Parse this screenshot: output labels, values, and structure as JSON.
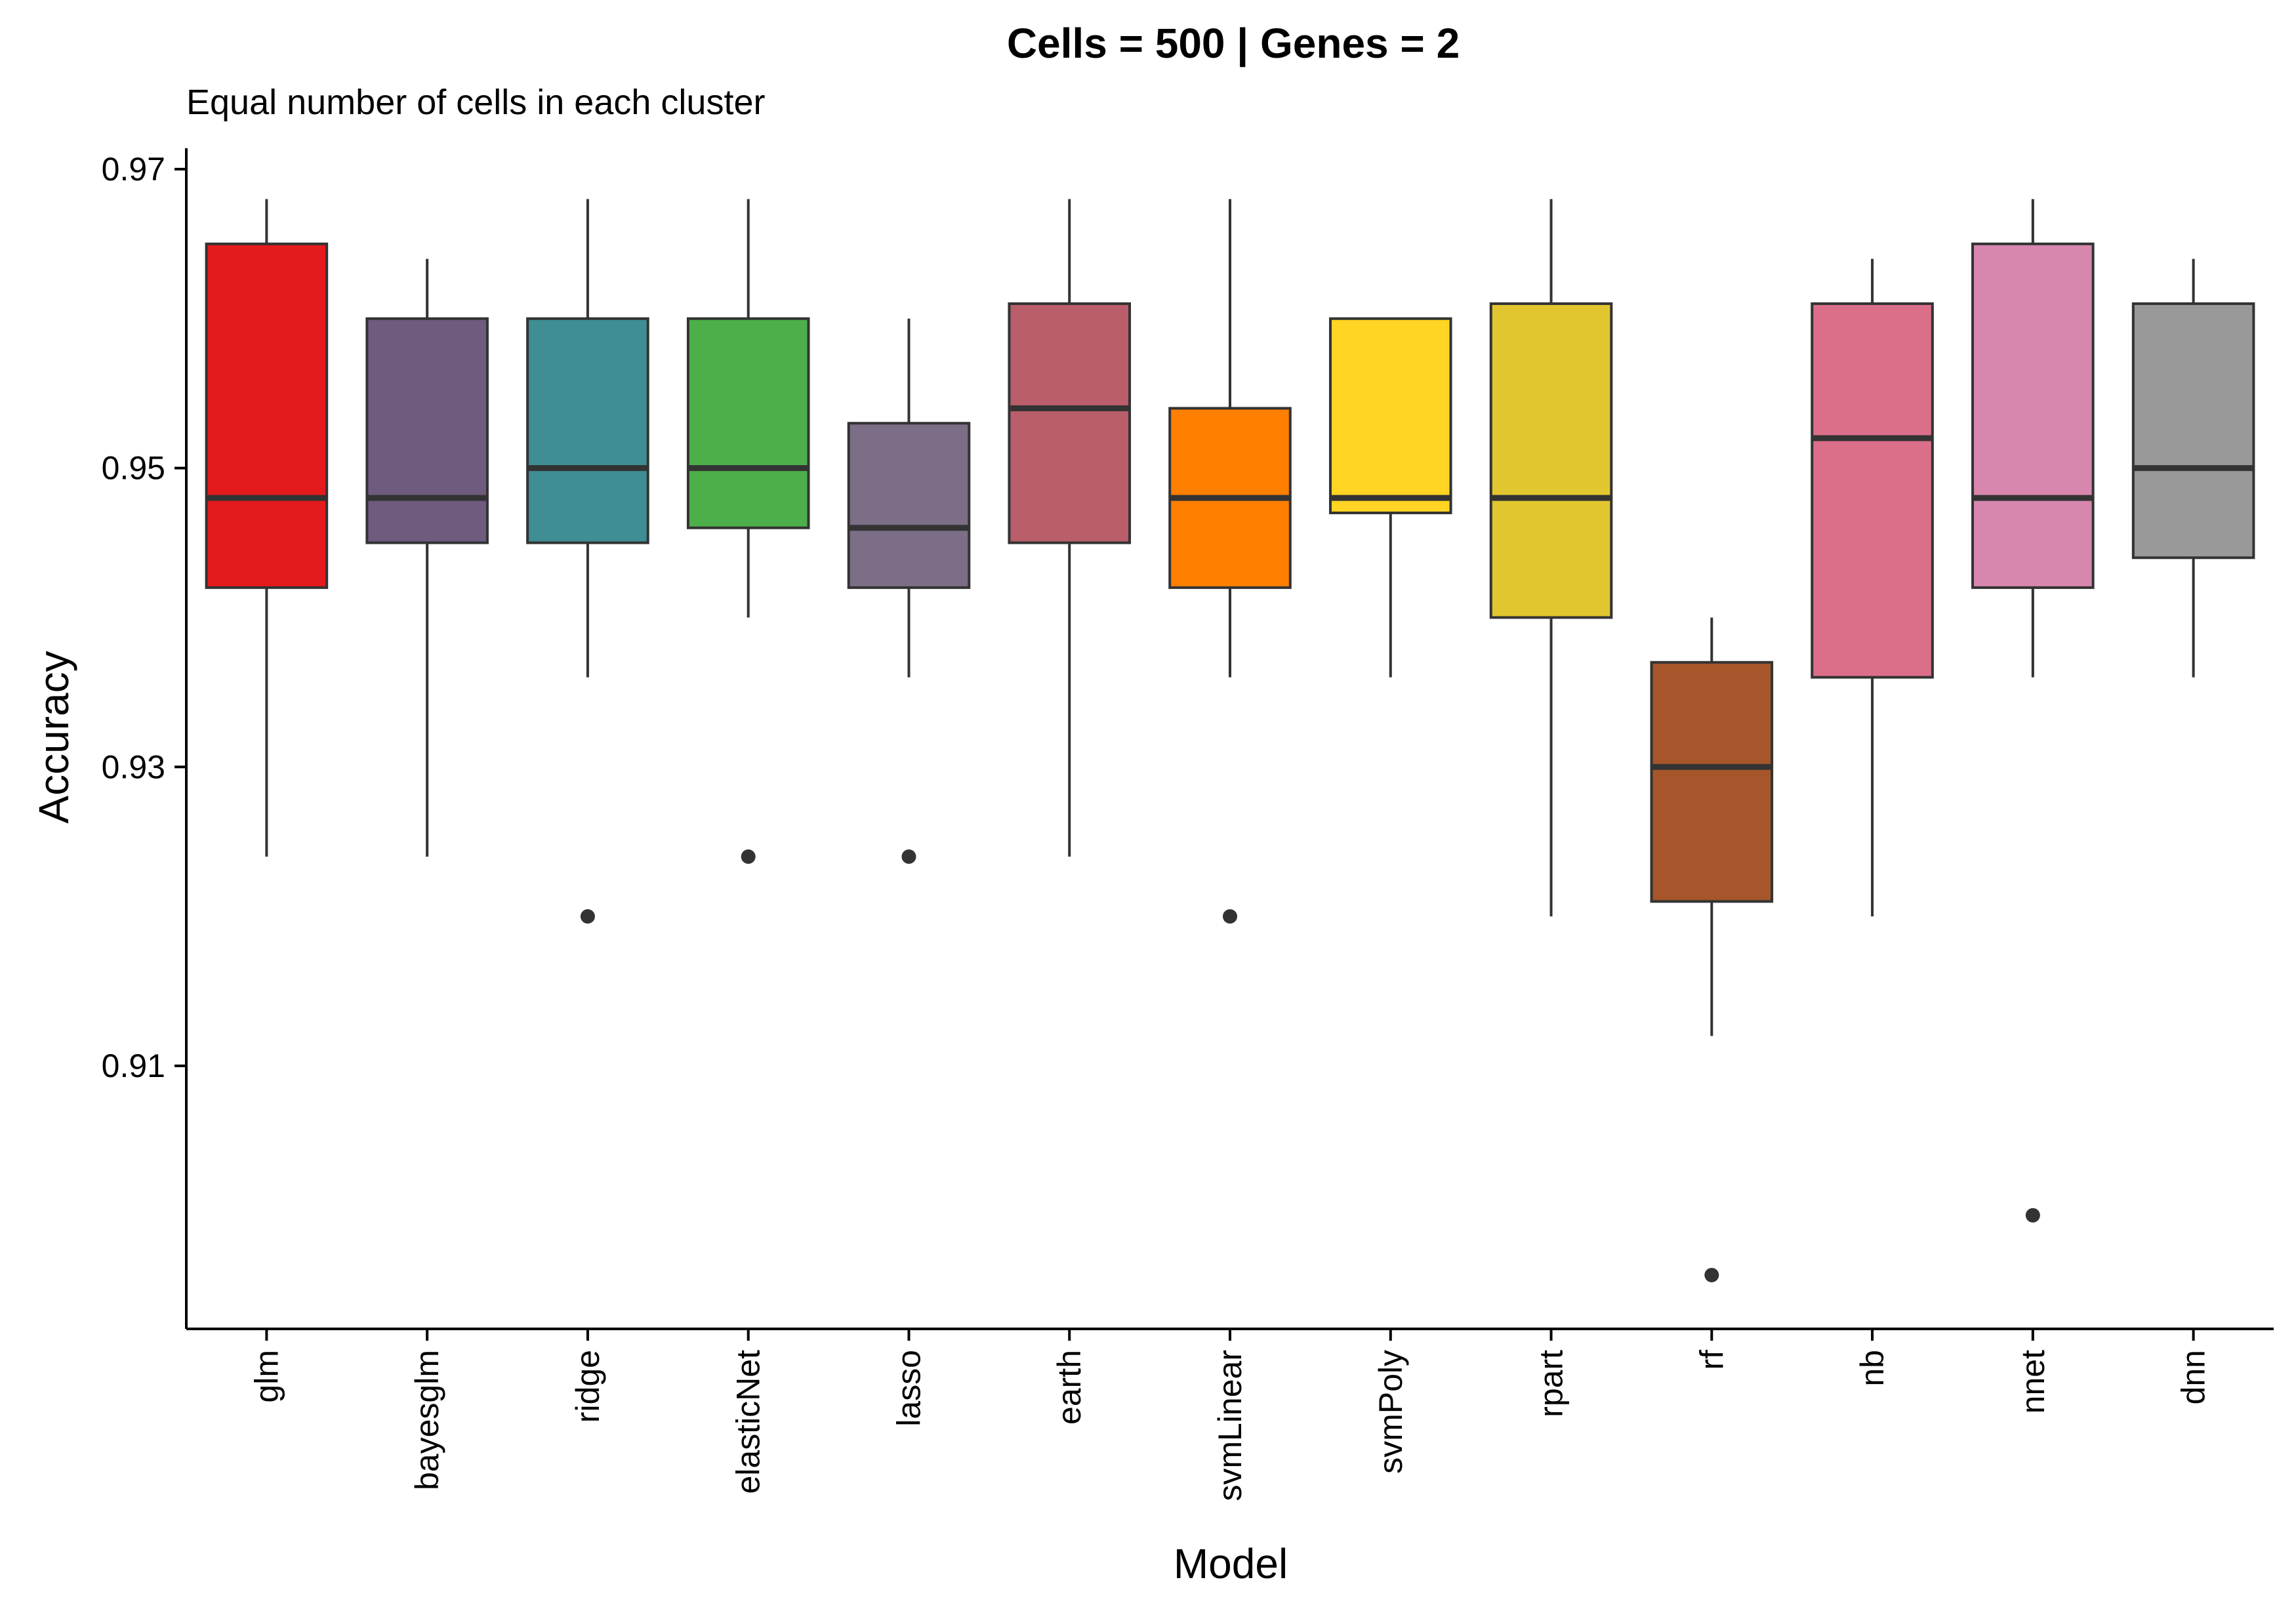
{
  "chart_data": {
    "type": "boxplot",
    "title": "Cells = 500 | Genes = 2",
    "subtitle": "Equal number of cells in each cluster",
    "xlabel": "Model",
    "ylabel": "Accuracy",
    "ylim": [
      0.8924,
      0.9714
    ],
    "yticks": [
      0.91,
      0.93,
      0.95,
      0.97
    ],
    "ytick_labels": [
      "0.91",
      "0.93",
      "0.95",
      "0.97"
    ],
    "grid": false,
    "legend": "none",
    "categories": [
      "glm",
      "bayesglm",
      "ridge",
      "elasticNet",
      "lasso",
      "earth",
      "svmLinear",
      "svmPoly",
      "rpart",
      "rf",
      "nb",
      "nnet",
      "dnn"
    ],
    "boxes": [
      {
        "name": "glm",
        "color": "#E41A1C",
        "whisker_low": 0.924,
        "q1": 0.942,
        "median": 0.948,
        "q3": 0.965,
        "whisker_high": 0.968,
        "outliers": []
      },
      {
        "name": "bayesglm",
        "color": "#6E5B7E",
        "whisker_low": 0.924,
        "q1": 0.945,
        "median": 0.948,
        "q3": 0.96,
        "whisker_high": 0.964,
        "outliers": []
      },
      {
        "name": "ridge",
        "color": "#3E8E93",
        "whisker_low": 0.936,
        "q1": 0.945,
        "median": 0.95,
        "q3": 0.96,
        "whisker_high": 0.968,
        "outliers": [
          0.92
        ]
      },
      {
        "name": "elasticNet",
        "color": "#4DAF4A",
        "whisker_low": 0.94,
        "q1": 0.946,
        "median": 0.95,
        "q3": 0.96,
        "whisker_high": 0.968,
        "outliers": [
          0.924
        ]
      },
      {
        "name": "lasso",
        "color": "#7B6E86",
        "whisker_low": 0.936,
        "q1": 0.942,
        "median": 0.946,
        "q3": 0.953,
        "whisker_high": 0.96,
        "outliers": [
          0.924
        ]
      },
      {
        "name": "earth",
        "color": "#B95E6A",
        "whisker_low": 0.924,
        "q1": 0.945,
        "median": 0.954,
        "q3": 0.961,
        "whisker_high": 0.968,
        "outliers": []
      },
      {
        "name": "svmLinear",
        "color": "#FF7F00",
        "whisker_low": 0.936,
        "q1": 0.942,
        "median": 0.948,
        "q3": 0.954,
        "whisker_high": 0.968,
        "outliers": [
          0.92
        ]
      },
      {
        "name": "svmPoly",
        "color": "#FFD422",
        "whisker_low": 0.936,
        "q1": 0.947,
        "median": 0.948,
        "q3": 0.96,
        "whisker_high": 0.96,
        "outliers": []
      },
      {
        "name": "rpart",
        "color": "#E1C630",
        "whisker_low": 0.92,
        "q1": 0.94,
        "median": 0.948,
        "q3": 0.961,
        "whisker_high": 0.968,
        "outliers": []
      },
      {
        "name": "rf",
        "color": "#A6562A",
        "whisker_low": 0.912,
        "q1": 0.921,
        "median": 0.93,
        "q3": 0.937,
        "whisker_high": 0.94,
        "outliers": [
          0.896
        ]
      },
      {
        "name": "nb",
        "color": "#DB6F8A",
        "whisker_low": 0.92,
        "q1": 0.936,
        "median": 0.952,
        "q3": 0.961,
        "whisker_high": 0.964,
        "outliers": []
      },
      {
        "name": "nnet",
        "color": "#D787AE",
        "whisker_low": 0.936,
        "q1": 0.942,
        "median": 0.948,
        "q3": 0.965,
        "whisker_high": 0.968,
        "outliers": [
          0.9
        ]
      },
      {
        "name": "dnn",
        "color": "#999999",
        "whisker_low": 0.936,
        "q1": 0.944,
        "median": 0.95,
        "q3": 0.961,
        "whisker_high": 0.964,
        "outliers": []
      }
    ]
  }
}
